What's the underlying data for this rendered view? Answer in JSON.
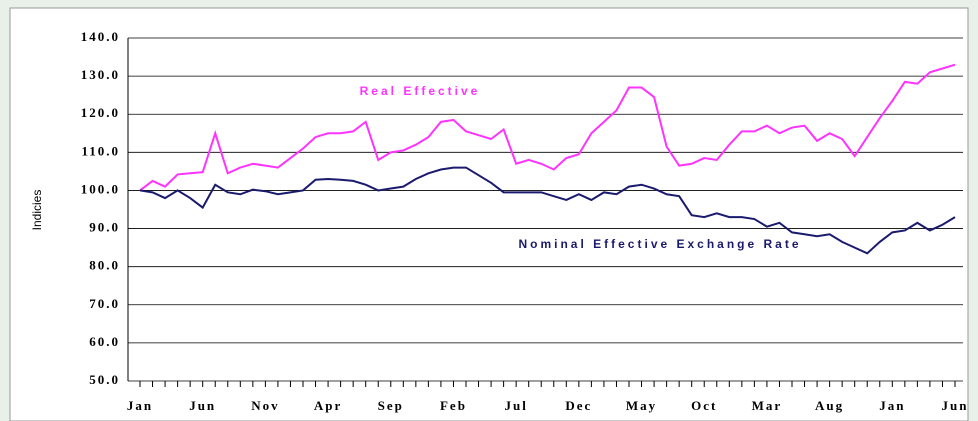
{
  "chart_data": {
    "type": "line",
    "y_label": "Indicies",
    "categories": [
      "Jan",
      null,
      null,
      null,
      null,
      "Jun",
      null,
      null,
      null,
      null,
      "Nov",
      null,
      null,
      null,
      null,
      "Apr",
      null,
      null,
      null,
      null,
      "Sep",
      null,
      null,
      null,
      null,
      "Feb",
      null,
      null,
      null,
      null,
      "Jul",
      null,
      null,
      null,
      null,
      "Dec",
      null,
      null,
      null,
      null,
      "May",
      null,
      null,
      null,
      null,
      "Oct",
      null,
      null,
      null,
      null,
      "Mar",
      null,
      null,
      null,
      null,
      "Aug",
      null,
      null,
      null,
      null,
      "Jan",
      null,
      null,
      null,
      null,
      "Jun"
    ],
    "series": [
      {
        "name": "Real Effective",
        "color": "#ff33ff",
        "values": [
          100,
          102.5,
          101,
          104.2,
          104.5,
          104.8,
          115,
          104.5,
          106,
          107,
          106.5,
          106,
          108.5,
          111,
          114,
          115,
          115,
          115.5,
          118,
          108,
          110,
          110.5,
          112,
          114,
          118,
          118.5,
          115.5,
          114.5,
          113.5,
          116,
          107,
          108,
          107,
          105.5,
          108.5,
          109.5,
          115,
          118,
          121,
          127,
          127,
          124.5,
          111.5,
          106.5,
          107,
          108.5,
          108,
          112,
          115.5,
          115.5,
          117,
          115,
          116.5,
          117,
          113,
          115,
          113.5,
          109,
          114,
          119,
          123.5,
          128.5,
          128,
          131,
          132,
          133
        ]
      },
      {
        "name": "Nominal Effective Exchange Rate",
        "color": "#1a1a6e",
        "values": [
          100,
          99.5,
          98,
          100,
          98,
          95.5,
          101.5,
          99.5,
          99,
          100.2,
          99.8,
          99,
          99.5,
          100,
          102.8,
          103,
          102.8,
          102.5,
          101.5,
          100,
          100.5,
          101,
          103,
          104.5,
          105.5,
          106,
          106,
          104,
          102,
          99.5,
          99.5,
          99.5,
          99.5,
          98.5,
          97.5,
          99,
          97.5,
          99.5,
          99,
          101,
          101.5,
          100.5,
          99,
          98.5,
          93.5,
          93,
          94,
          93,
          93,
          92.5,
          90.5,
          91.5,
          89,
          88.5,
          88,
          88.5,
          86.5,
          85,
          83.5,
          86.5,
          89,
          89.5,
          91.5,
          89.5,
          91,
          93
        ]
      }
    ],
    "ylim": [
      50,
      140
    ],
    "yticks": [
      {
        "value": 50,
        "label": "50.0"
      },
      {
        "value": 60,
        "label": "60.0"
      },
      {
        "value": 70,
        "label": "70.0"
      },
      {
        "value": 80,
        "label": "80.0"
      },
      {
        "value": 90,
        "label": "90.0"
      },
      {
        "value": 100,
        "label": "100.0"
      },
      {
        "value": 110,
        "label": "110.0"
      },
      {
        "value": 120,
        "label": "120.0"
      },
      {
        "value": 130,
        "label": "130.0"
      },
      {
        "value": 140,
        "label": "140.0"
      }
    ],
    "grid": true
  }
}
